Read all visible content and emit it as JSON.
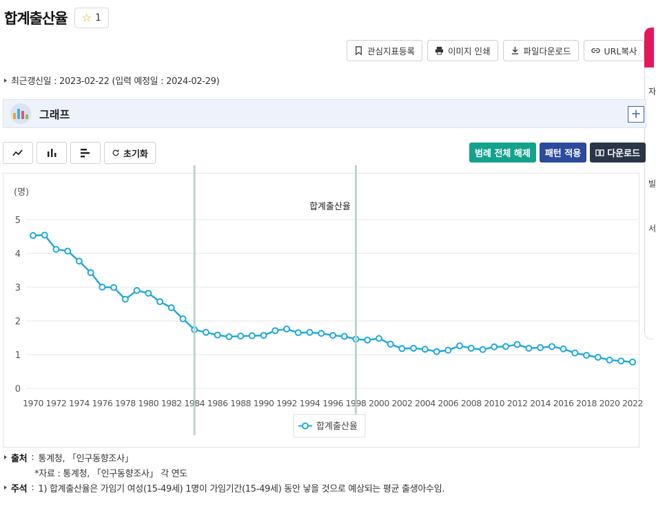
{
  "page": {
    "title": "합계출산율",
    "favorite_count": "1",
    "update_text": "최근갱신일 : 2023-02-22 (입력 예정일 : 2024-02-29)",
    "graph_section_label": "그래프"
  },
  "toolbar": {
    "bookmark_label": "관심지표등록",
    "print_label": "이미지 인쇄",
    "file_download_label": "파일다운로드",
    "url_copy_label": "URL복사"
  },
  "side_panel": {
    "chars": [
      "자",
      "빌",
      "서"
    ]
  },
  "chart_controls": {
    "reset_label": "초기화",
    "legend_clear_label": "범례 전체 해제",
    "pattern_label": "패턴 적용",
    "download_label": "다운로드"
  },
  "colors": {
    "series": "#1fa9d9",
    "legend_clear_bg": "#13a28c",
    "pattern_bg": "#2c4a9e",
    "download_bg": "#2a3547",
    "marker_line": "#b3d0cb"
  },
  "chart_data": {
    "type": "line",
    "title": "합계출산율",
    "unit_label": "(명)",
    "ylim": [
      0,
      5
    ],
    "yticks": [
      0,
      1,
      2,
      3,
      4,
      5
    ],
    "x_tick_labels": [
      "1970",
      "1972",
      "1974",
      "1976",
      "1978",
      "1980",
      "1982",
      "1984",
      "1986",
      "1988",
      "1990",
      "1992",
      "1994",
      "1996",
      "1998",
      "2000",
      "2002",
      "2004",
      "2006",
      "2008",
      "2010",
      "2012",
      "2014",
      "2016",
      "2018",
      "2020",
      "2022"
    ],
    "grid": true,
    "legend_position": "bottom-center",
    "highlight_years": [
      1984,
      1998
    ],
    "series": [
      {
        "name": "합계출산율",
        "x": [
          1970,
          1971,
          1972,
          1973,
          1974,
          1975,
          1976,
          1977,
          1978,
          1979,
          1980,
          1981,
          1982,
          1983,
          1984,
          1985,
          1986,
          1987,
          1988,
          1989,
          1990,
          1991,
          1992,
          1993,
          1994,
          1995,
          1996,
          1997,
          1998,
          1999,
          2000,
          2001,
          2002,
          2003,
          2004,
          2005,
          2006,
          2007,
          2008,
          2009,
          2010,
          2011,
          2012,
          2013,
          2014,
          2015,
          2016,
          2017,
          2018,
          2019,
          2020,
          2021,
          2022
        ],
        "values": [
          4.53,
          4.54,
          4.12,
          4.07,
          3.77,
          3.43,
          3.0,
          2.99,
          2.64,
          2.9,
          2.82,
          2.57,
          2.39,
          2.06,
          1.74,
          1.66,
          1.58,
          1.53,
          1.55,
          1.56,
          1.57,
          1.71,
          1.76,
          1.65,
          1.66,
          1.63,
          1.57,
          1.54,
          1.46,
          1.43,
          1.48,
          1.31,
          1.18,
          1.19,
          1.16,
          1.09,
          1.13,
          1.26,
          1.19,
          1.15,
          1.23,
          1.24,
          1.3,
          1.19,
          1.21,
          1.24,
          1.17,
          1.05,
          0.98,
          0.92,
          0.84,
          0.81,
          0.78
        ]
      }
    ]
  },
  "source": {
    "label": "출처",
    "text": "통계청, 「인구동향조사」",
    "sub": "*자료 : 통계청, 「인구동향조사」 각 연도",
    "note_label": "주석",
    "note": "1) 합계출산율은 가임기 여성(15-49세) 1명이 가임기간(15-49세) 동안 낳을 것으로 예상되는 평균 출생아수임."
  }
}
